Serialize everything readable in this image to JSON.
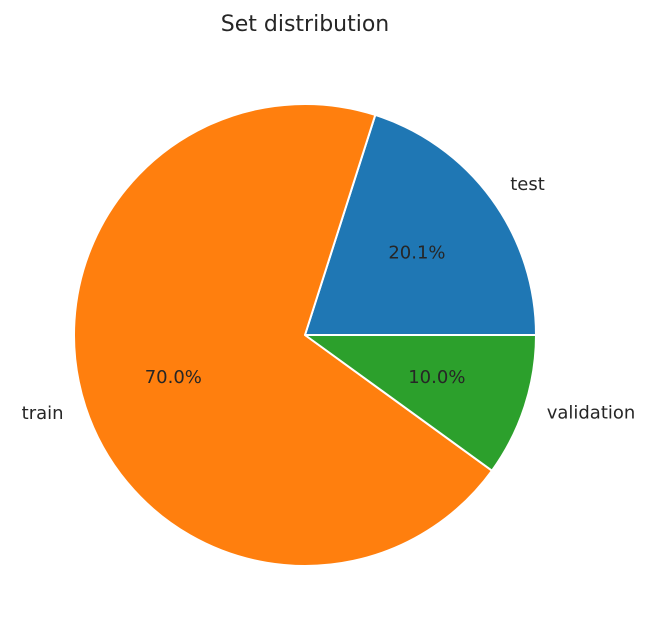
{
  "chart_data": {
    "type": "pie",
    "title": "Set distribution",
    "slices": [
      {
        "label": "test",
        "value": 20.1,
        "pct_label": "20.1%",
        "color": "#1f77b4"
      },
      {
        "label": "train",
        "value": 70.0,
        "pct_label": "70.0%",
        "color": "#ff7f0e"
      },
      {
        "label": "validation",
        "value": 10.0,
        "pct_label": "10.0%",
        "color": "#2ca02c"
      }
    ],
    "start_angle_deg": 0,
    "direction": "counterclockwise",
    "edge_color": "#ffffff"
  }
}
